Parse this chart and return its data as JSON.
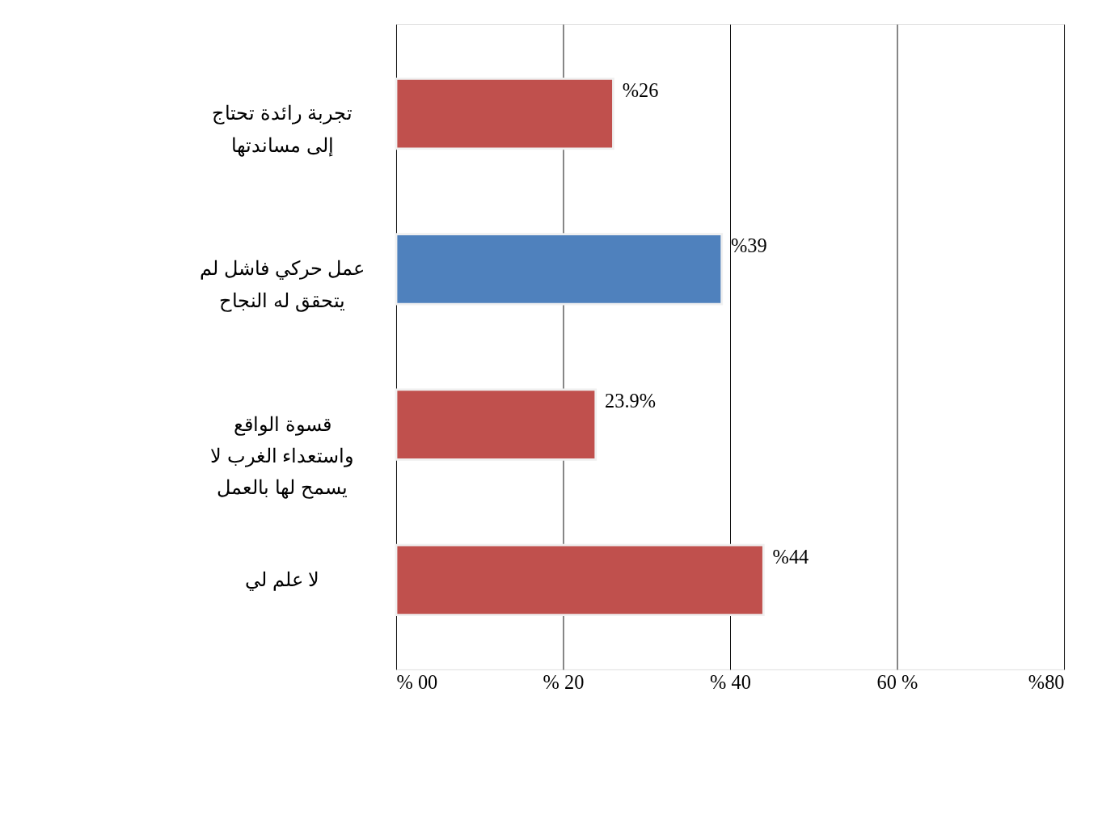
{
  "chart_data": {
    "type": "bar",
    "orientation": "horizontal",
    "categories": [
      "تجربة رائدة تحتاج إلى مساندتها",
      "عمل حركي فاشل لم يتحقق له النجاح",
      "قسوة الواقع واستعداء الغرب لا يسمح لها بالعمل",
      "لا علم لي"
    ],
    "values": [
      26,
      39,
      23.9,
      44
    ],
    "colors": [
      "#c0504d",
      "#4f81bd",
      "#c0504d",
      "#c0504d"
    ],
    "value_labels": [
      "%26",
      "%39",
      "23.9%",
      "%44"
    ],
    "xlim": [
      0,
      80
    ],
    "xticks": [
      {
        "value": 0,
        "label": "% 00"
      },
      {
        "value": 20,
        "label": "% 20"
      },
      {
        "value": 40,
        "label": "% 40"
      },
      {
        "value": 60,
        "label": "60 %"
      },
      {
        "value": 80,
        "label": "%80"
      }
    ],
    "grid": "x"
  }
}
